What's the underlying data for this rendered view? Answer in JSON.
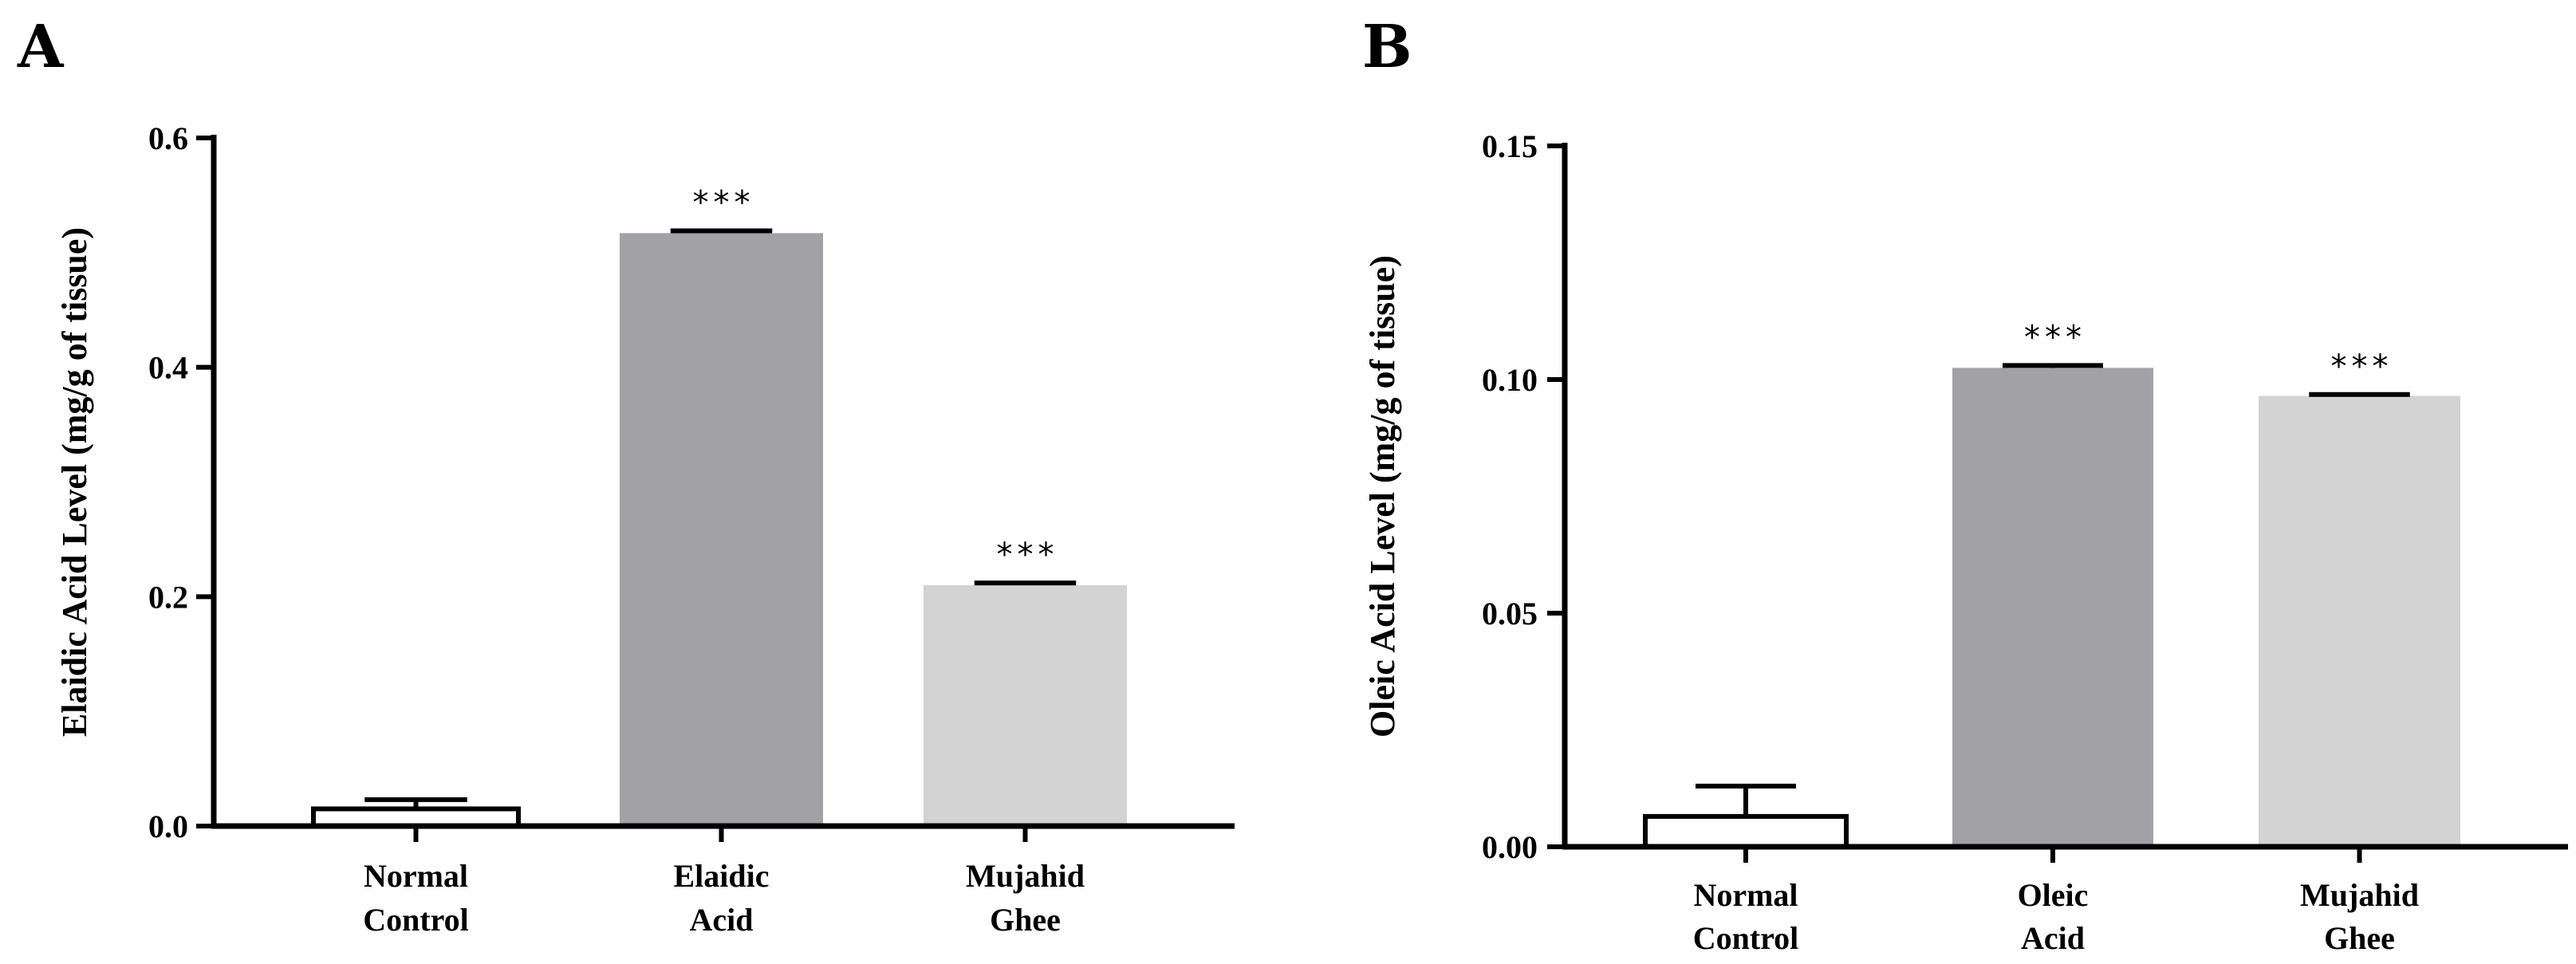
{
  "chart_data": [
    {
      "type": "bar",
      "panel": "A",
      "ylabel": "Elaidic Acid Level (mg/g of tissue)",
      "ylim": [
        0,
        0.6
      ],
      "yticks": [
        0.0,
        0.2,
        0.4,
        0.6
      ],
      "ytick_labels": [
        "0.0",
        "0.2",
        "0.4",
        "0.6"
      ],
      "categories": [
        [
          "Normal",
          "Control"
        ],
        [
          "Elaidic",
          "Acid"
        ],
        [
          "Mujahid",
          "Ghee"
        ]
      ],
      "values": [
        0.015,
        0.517,
        0.21
      ],
      "errors": [
        0.008,
        0.002,
        0.002
      ],
      "significance": [
        "",
        "***",
        "***"
      ],
      "colors": [
        "#ffffff",
        "#a2a2a6",
        "#d3d3d3"
      ]
    },
    {
      "type": "bar",
      "panel": "B",
      "ylabel": "Oleic Acid Level (mg/g of tissue)",
      "ylim": [
        0,
        0.15
      ],
      "yticks": [
        0.0,
        0.05,
        0.1,
        0.15
      ],
      "ytick_labels": [
        "0.00",
        "0.05",
        "0.10",
        "0.15"
      ],
      "categories": [
        [
          "Normal",
          "Control"
        ],
        [
          "Oleic",
          "Acid"
        ],
        [
          "Mujahid",
          "Ghee"
        ]
      ],
      "values": [
        0.0065,
        0.1025,
        0.0965
      ],
      "errors": [
        0.0065,
        0.0005,
        0.0003
      ],
      "significance": [
        "",
        "***",
        "***"
      ],
      "colors": [
        "#ffffff",
        "#a2a2a6",
        "#d3d3d3"
      ]
    }
  ]
}
